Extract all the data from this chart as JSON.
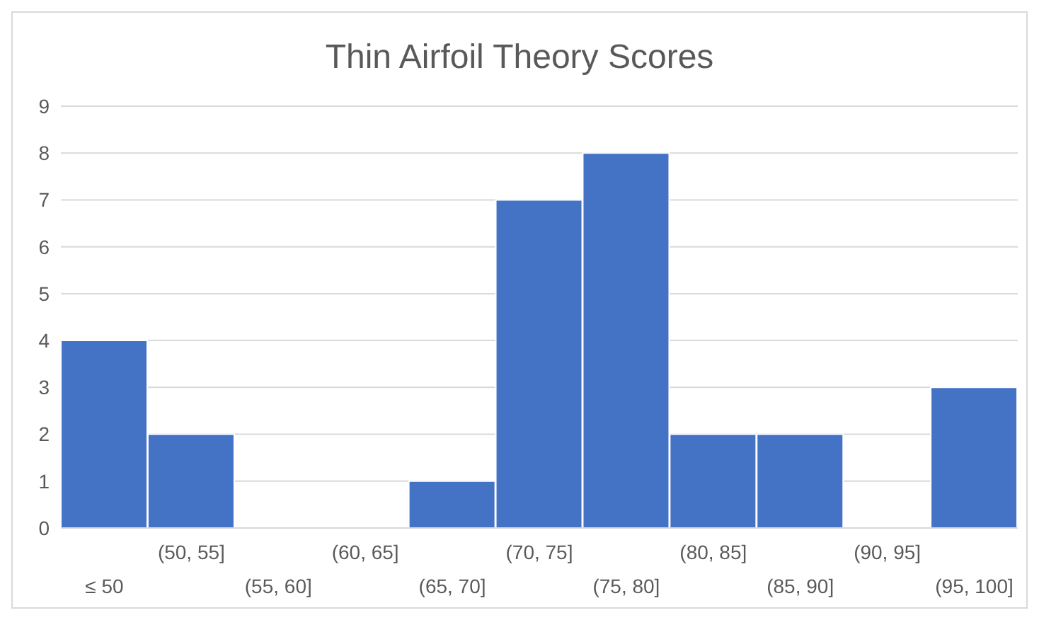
{
  "chart_data": {
    "type": "bar",
    "title": "Thin Airfoil Theory Scores",
    "categories": [
      "≤ 50",
      "(50, 55]",
      "(55, 60]",
      "(60, 65]",
      "(65, 70]",
      "(70, 75]",
      "(75, 80]",
      "(80, 85]",
      "(85, 90]",
      "(90, 95]",
      "(95, 100]"
    ],
    "values": [
      4,
      2,
      0,
      0,
      1,
      7,
      8,
      2,
      2,
      0,
      3
    ],
    "color": "#4472c4",
    "ylim": [
      0,
      9
    ],
    "yticks": [
      0,
      1,
      2,
      3,
      4,
      5,
      6,
      7,
      8,
      9
    ],
    "grid": "y"
  }
}
